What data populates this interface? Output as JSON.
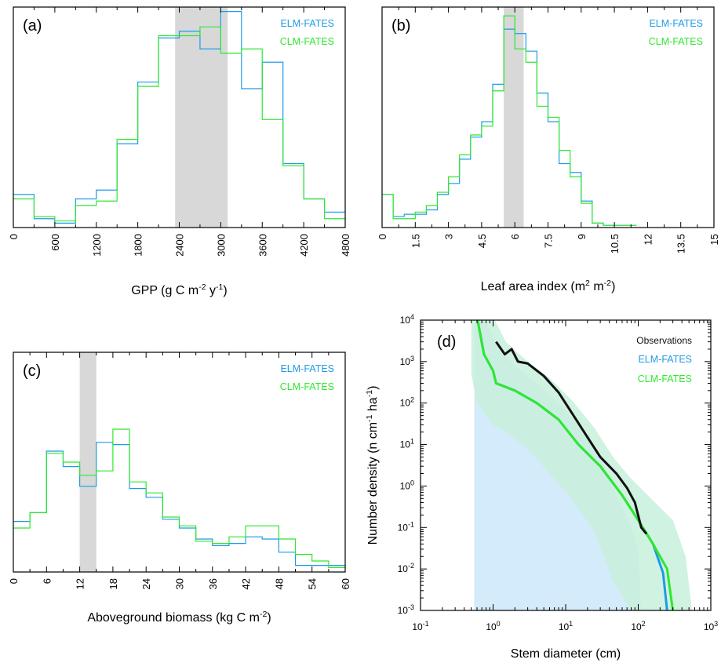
{
  "figure": {
    "colors": {
      "elm": "#1e9be6",
      "clm": "#2ee82e",
      "obs": "#111111",
      "shade": "#d8d8d8",
      "elm_band": "#d3ebfa",
      "clm_band": "#c8f0dc"
    }
  },
  "chart_data": [
    {
      "type": "histogram",
      "panel": "(a)",
      "xlabel": "GPP (g C m",
      "xlabel_parts": [
        "-2",
        " y",
        "-1",
        ")"
      ],
      "xlim": [
        0,
        4800
      ],
      "xticks": [
        "0",
        "600",
        "1200",
        "1800",
        "2400",
        "3000",
        "3600",
        "4200",
        "4800"
      ],
      "bin_edges": [
        0,
        300,
        600,
        900,
        1200,
        1500,
        1800,
        2100,
        2400,
        2700,
        3000,
        3300,
        3600,
        3900,
        4200,
        4500,
        4800
      ],
      "shaded_range": [
        2340,
        3100
      ],
      "ymax": 1.0,
      "legend": [
        "ELM-FATES",
        "CLM-FATES"
      ],
      "series": [
        {
          "name": "ELM-FATES",
          "values": [
            0.15,
            0.04,
            0.02,
            0.13,
            0.17,
            0.38,
            0.66,
            0.86,
            0.89,
            0.81,
            0.98,
            0.63,
            0.75,
            0.29,
            0.13,
            0.07
          ]
        },
        {
          "name": "CLM-FATES",
          "values": [
            0.13,
            0.05,
            0.03,
            0.1,
            0.12,
            0.4,
            0.64,
            0.87,
            0.87,
            0.91,
            0.79,
            0.81,
            0.49,
            0.28,
            0.13,
            0.04
          ]
        }
      ]
    },
    {
      "type": "histogram",
      "panel": "(b)",
      "xlabel": "Leaf area index (m",
      "xlabel_parts": [
        "2",
        " m",
        "-2",
        ")"
      ],
      "xlim": [
        0,
        15
      ],
      "xticks": [
        "0",
        "1.5",
        "3",
        "4.5",
        "6",
        "7.5",
        "9",
        "10.5",
        "12",
        "13.5",
        "15"
      ],
      "bin_edges": [
        0,
        0.5,
        1,
        1.5,
        2,
        2.5,
        3,
        3.5,
        4,
        4.5,
        5,
        5.5,
        6,
        6.5,
        7,
        7.5,
        8,
        8.5,
        9,
        9.5,
        10,
        10.5,
        11,
        11.5
      ],
      "shaded_range": [
        5.5,
        6.4
      ],
      "ymax": 1.0,
      "legend": [
        "ELM-FATES",
        "CLM-FATES"
      ],
      "series": [
        {
          "name": "ELM-FATES",
          "values": [
            0.15,
            0.05,
            0.06,
            0.06,
            0.08,
            0.15,
            0.2,
            0.31,
            0.41,
            0.48,
            0.65,
            0.9,
            0.88,
            0.8,
            0.61,
            0.48,
            0.29,
            0.25,
            0.12,
            0.02,
            0.01,
            0.01,
            0.01
          ]
        },
        {
          "name": "CLM-FATES",
          "values": [
            0.15,
            0.04,
            0.04,
            0.07,
            0.1,
            0.16,
            0.23,
            0.33,
            0.42,
            0.46,
            0.62,
            0.96,
            0.81,
            0.75,
            0.55,
            0.5,
            0.35,
            0.23,
            0.11,
            0.02,
            0.01,
            0.01,
            0.01
          ]
        }
      ]
    },
    {
      "type": "histogram",
      "panel": "(c)",
      "xlabel": "Aboveground biomass (kg C m",
      "xlabel_parts": [
        "-2",
        ")"
      ],
      "xlim": [
        0,
        60
      ],
      "xticks": [
        "0",
        "6",
        "12",
        "18",
        "24",
        "30",
        "36",
        "42",
        "48",
        "54",
        "60"
      ],
      "bin_edges": [
        0,
        3,
        6,
        9,
        12,
        15,
        18,
        21,
        24,
        27,
        30,
        33,
        36,
        39,
        42,
        45,
        48,
        51,
        54,
        57,
        60
      ],
      "shaded_range": [
        12,
        15
      ],
      "ymax": 1.0,
      "legend": [
        "ELM-FATES",
        "CLM-FATES"
      ],
      "series": [
        {
          "name": "ELM-FATES",
          "values": [
            0.23,
            0.27,
            0.55,
            0.48,
            0.39,
            0.59,
            0.58,
            0.38,
            0.34,
            0.24,
            0.2,
            0.15,
            0.12,
            0.13,
            0.16,
            0.15,
            0.09,
            0.03,
            0.03,
            0.03
          ]
        },
        {
          "name": "CLM-FATES",
          "values": [
            0.2,
            0.27,
            0.54,
            0.5,
            0.44,
            0.46,
            0.65,
            0.41,
            0.36,
            0.25,
            0.21,
            0.14,
            0.13,
            0.16,
            0.21,
            0.21,
            0.15,
            0.08,
            0.05,
            0.02
          ]
        }
      ]
    },
    {
      "type": "line",
      "panel": "(d)",
      "xlabel": "Stem diameter (cm)",
      "ylabel": "Number density (n cm",
      "ylabel_parts": [
        "-1",
        " ha",
        "-1",
        ")"
      ],
      "xscale": "log",
      "yscale": "log",
      "xlim": [
        0.1,
        1000
      ],
      "ylim": [
        0.001,
        10000
      ],
      "xticks": [
        {
          "b": "10",
          "e": "-1"
        },
        {
          "b": "10",
          "e": "0"
        },
        {
          "b": "10",
          "e": "1"
        },
        {
          "b": "10",
          "e": "2"
        },
        {
          "b": "10",
          "e": "3"
        }
      ],
      "yticks": [
        {
          "b": "10",
          "e": "-3"
        },
        {
          "b": "10",
          "e": "-2"
        },
        {
          "b": "10",
          "e": "-1"
        },
        {
          "b": "10",
          "e": "0"
        },
        {
          "b": "10",
          "e": "1"
        },
        {
          "b": "10",
          "e": "2"
        },
        {
          "b": "10",
          "e": "3"
        },
        {
          "b": "10",
          "e": "4"
        }
      ],
      "legend": [
        "Observations",
        "ELM-FATES",
        "CLM-FATES"
      ],
      "series": [
        {
          "name": "Observations",
          "x": [
            1.1,
            1.45,
            1.8,
            2.2,
            3.0,
            5.0,
            8.0,
            12,
            20,
            30,
            50,
            70,
            90,
            110,
            130
          ],
          "y": [
            3000,
            1500,
            2000,
            1000,
            900,
            450,
            180,
            60,
            15,
            5,
            2,
            0.9,
            0.4,
            0.1,
            0.07
          ]
        },
        {
          "name": "ELM-FATES",
          "x": [
            0.6,
            0.75,
            1.0,
            1.1,
            2,
            4,
            8,
            15,
            30,
            60,
            100,
            160,
            220,
            250
          ],
          "y": [
            12000,
            1500,
            600,
            300,
            200,
            100,
            40,
            10,
            3,
            0.6,
            0.15,
            0.04,
            0.008,
            0.001
          ]
        },
        {
          "name": "CLM-FATES",
          "x": [
            0.6,
            0.75,
            1.0,
            1.1,
            2,
            4,
            8,
            15,
            30,
            60,
            100,
            160,
            250,
            300
          ],
          "y": [
            12000,
            1500,
            600,
            300,
            200,
            100,
            40,
            10,
            3,
            0.6,
            0.15,
            0.04,
            0.01,
            0.001
          ]
        }
      ],
      "bands": [
        {
          "name": "ELM-FATES",
          "x": [
            0.55,
            0.8,
            1.2,
            2,
            4,
            8,
            15,
            30,
            45,
            60,
            80,
            100,
            110
          ],
          "lower": [
            0.001,
            0.001,
            0.001,
            0.001,
            0.001,
            0.001,
            0.001,
            0.001,
            0.001,
            0.001,
            0.001,
            0.001,
            0.001
          ],
          "upper": [
            10000,
            10000,
            2000,
            800,
            300,
            100,
            30,
            5,
            1,
            0.3,
            0.1,
            0.03,
            0.001
          ]
        },
        {
          "name": "CLM-FATES",
          "x": [
            0.5,
            0.6,
            1.0,
            1.5,
            3,
            6,
            12,
            25,
            45,
            80,
            150,
            300,
            450,
            550
          ],
          "lower": [
            500,
            100,
            30,
            20,
            8,
            2,
            0.5,
            0.08,
            0.005,
            0.001,
            0.001,
            0.001,
            0.001,
            0.001
          ],
          "upper": [
            12000,
            12000,
            12000,
            3000,
            1000,
            400,
            120,
            25,
            5,
            1.5,
            0.5,
            0.15,
            0.02,
            0.001
          ]
        }
      ]
    }
  ]
}
